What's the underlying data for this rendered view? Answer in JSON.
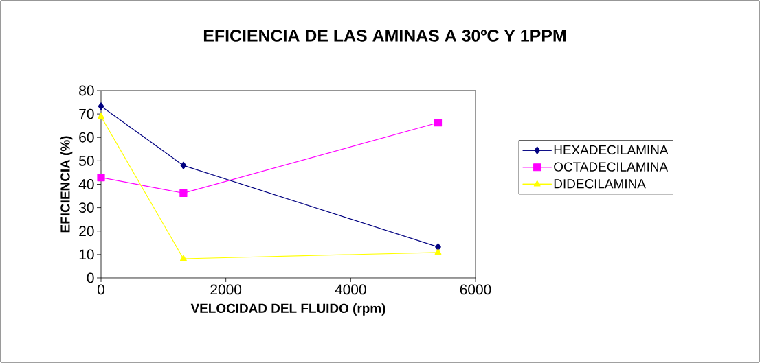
{
  "chart_data": {
    "type": "line",
    "title": "EFICIENCIA DE LAS AMINAS A 30ºC Y 1PPM",
    "xlabel": "VELOCIDAD DEL FLUIDO (rpm)",
    "ylabel": "EFICIENCIA (%)",
    "x": [
      0,
      1320,
      5400
    ],
    "series": [
      {
        "name": "HEXADECILAMINA",
        "color": "#000080",
        "marker": "diamond",
        "values": [
          73.3,
          48,
          13.2
        ]
      },
      {
        "name": "OCTADECILAMINA",
        "color": "#ff00ff",
        "marker": "square",
        "values": [
          42.9,
          36.2,
          66.3
        ]
      },
      {
        "name": "DIDECILAMINA",
        "color": "#ffff00",
        "marker": "triangle",
        "values": [
          68.9,
          8.2,
          10.9
        ]
      }
    ],
    "xlim": [
      0,
      6000
    ],
    "xticks": [
      0,
      2000,
      4000,
      6000
    ],
    "ylim": [
      0,
      80
    ],
    "yticks": [
      0,
      10,
      20,
      30,
      40,
      50,
      60,
      70,
      80
    ],
    "grid": false,
    "legend": "right"
  }
}
